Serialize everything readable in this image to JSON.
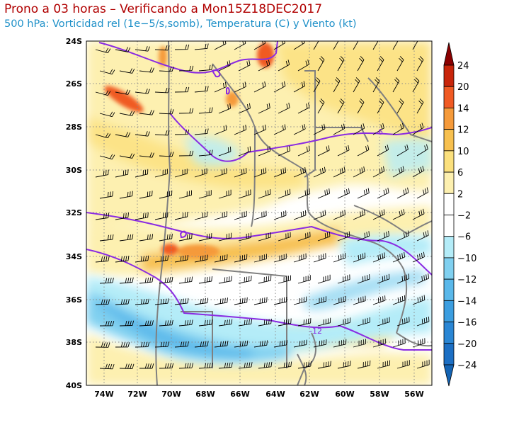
{
  "header": {
    "title": "Prono a 03 horas – Verificando a Mon15Z18DEC2017",
    "subtitle": "500 hPa: Vorticidad rel (1e−5/s,somb), Temperatura (C) y Viento (kt)"
  },
  "map": {
    "lat_labels": [
      "24S",
      "26S",
      "28S",
      "30S",
      "32S",
      "34S",
      "36S",
      "38S",
      "40S"
    ],
    "lon_labels": [
      "74W",
      "72W",
      "70W",
      "68W",
      "66W",
      "64W",
      "62W",
      "60W",
      "58W",
      "56W"
    ],
    "isotherm_labels": [
      "-6",
      "-12"
    ]
  },
  "colorbar": {
    "labels": [
      "24",
      "20",
      "14",
      "12",
      "10",
      "6",
      "2",
      "−2",
      "−6",
      "−10",
      "−12",
      "−14",
      "−16",
      "−20",
      "−24"
    ],
    "colors": [
      "#c8250a",
      "#f05a23",
      "#f59a3a",
      "#f7c04f",
      "#fbe07d",
      "#fdf0b0",
      "#ffffff",
      "#ffffff",
      "#b4ecf8",
      "#80d0f0",
      "#5ab8ea",
      "#3c9ee0",
      "#2a86d4",
      "#1c6fc4"
    ]
  }
}
